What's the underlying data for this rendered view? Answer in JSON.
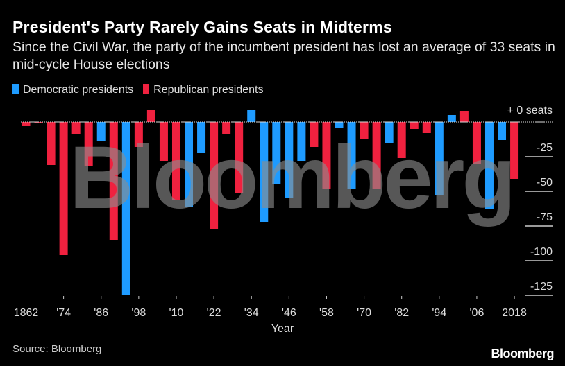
{
  "chart_data": {
    "type": "bar",
    "title": "President's Party Rarely Gains Seats in Midterms",
    "subtitle": "Since the Civil War, the party of the incumbent president has lost an average of 33 seats in mid-cycle House elections",
    "xlabel": "Year",
    "ylabel": "",
    "y_unit_label": "+ 0 seats",
    "ylim": [
      -130,
      10
    ],
    "yticks": [
      "-25",
      "-50",
      "-75",
      "-100",
      "-125"
    ],
    "ytick_values": [
      -25,
      -50,
      -75,
      -100,
      -125
    ],
    "xtick_labels": [
      "1862",
      "'74",
      "'86",
      "'98",
      "'10",
      "'22",
      "'34",
      "'46",
      "'58",
      "'70",
      "'82",
      "'94",
      "'06",
      "2018"
    ],
    "legend": [
      {
        "name": "Democratic presidents",
        "color": "#1e9bff"
      },
      {
        "name": "Republican presidents",
        "color": "#f0213f"
      }
    ],
    "legend_position": "top-left",
    "grid": false,
    "categories": [
      1862,
      1866,
      1870,
      1874,
      1878,
      1882,
      1886,
      1890,
      1894,
      1898,
      1902,
      1906,
      1910,
      1914,
      1918,
      1922,
      1926,
      1930,
      1934,
      1938,
      1942,
      1946,
      1950,
      1954,
      1958,
      1962,
      1966,
      1970,
      1974,
      1978,
      1982,
      1986,
      1990,
      1994,
      1998,
      2002,
      2006,
      2010,
      2014,
      2018
    ],
    "party": [
      "R",
      "R",
      "R",
      "R",
      "R",
      "R",
      "D",
      "R",
      "D",
      "R",
      "R",
      "R",
      "R",
      "D",
      "D",
      "R",
      "R",
      "R",
      "D",
      "D",
      "D",
      "D",
      "D",
      "R",
      "R",
      "D",
      "D",
      "R",
      "R",
      "D",
      "R",
      "R",
      "R",
      "D",
      "D",
      "R",
      "R",
      "D",
      "D",
      "R"
    ],
    "values": [
      -3,
      -1,
      -31,
      -96,
      -9,
      -32,
      -14,
      -85,
      -125,
      -18,
      9,
      -28,
      -56,
      -61,
      -22,
      -77,
      -9,
      -51,
      9,
      -72,
      -45,
      -55,
      -28,
      -18,
      -48,
      -4,
      -48,
      -12,
      -48,
      -15,
      -26,
      -5,
      -8,
      -53,
      5,
      8,
      -30,
      -63,
      -13,
      -41
    ]
  },
  "source": "Source: Bloomberg",
  "watermark": "Bloomberg",
  "logo": "Bloomberg"
}
